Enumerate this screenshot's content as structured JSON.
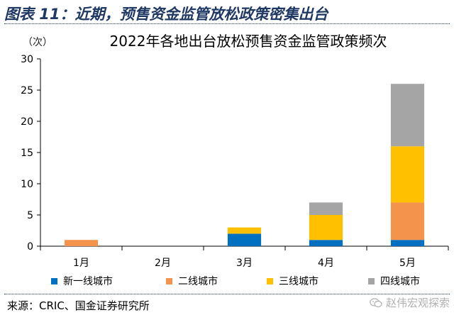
{
  "figure": {
    "caption": "图表 11：近期，预售资金监管放松政策密集出台",
    "source": "来源：CRIC、国金证券研究所",
    "watermark": "赵伟宏观探索",
    "watermark_icon": "wechat-icon"
  },
  "chart_data": {
    "type": "bar",
    "stacked": true,
    "title": "2022年各地出台放松预售资金监管政策频次",
    "unit_label": "（次）",
    "categories": [
      "1月",
      "2月",
      "3月",
      "4月",
      "5月"
    ],
    "series": [
      {
        "name": "新一线城市",
        "color": "#0070c0",
        "values": [
          0,
          0,
          2,
          1,
          1
        ]
      },
      {
        "name": "二线城市",
        "color": "#f4944c",
        "values": [
          1,
          0,
          0,
          0,
          6
        ]
      },
      {
        "name": "三线城市",
        "color": "#ffc000",
        "values": [
          0,
          0,
          1,
          4,
          9
        ]
      },
      {
        "name": "四线城市",
        "color": "#a5a5a5",
        "values": [
          0,
          0,
          0,
          2,
          10
        ]
      }
    ],
    "ylim": [
      0,
      30
    ],
    "yticks": [
      "0",
      "5",
      "10",
      "15",
      "20",
      "25",
      "30"
    ],
    "grid": false,
    "legend_position": "bottom"
  }
}
